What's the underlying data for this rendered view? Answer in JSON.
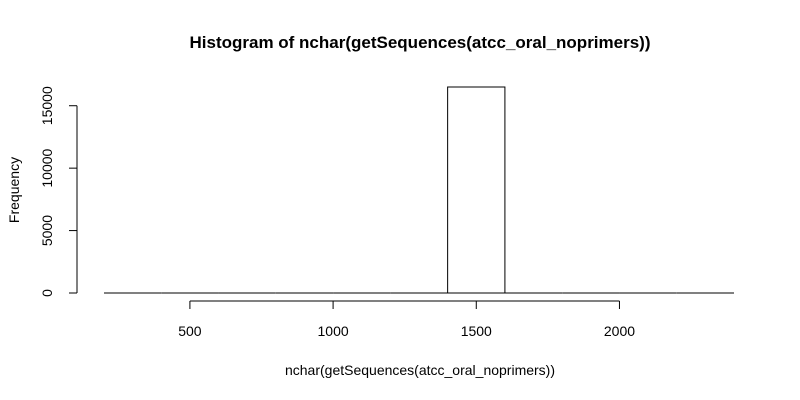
{
  "chart_data": {
    "type": "bar",
    "title": "Histogram of nchar(getSequences(atcc_oral_noprimers))",
    "xlabel": "nchar(getSequences(atcc_oral_noprimers))",
    "ylabel": "Frequency",
    "xlim": [
      200,
      2400
    ],
    "ylim": [
      0,
      16500
    ],
    "x_ticks": [
      500,
      1000,
      1500,
      2000
    ],
    "y_ticks": [
      0,
      5000,
      10000,
      15000
    ],
    "bins": [
      {
        "x0": 200,
        "x1": 400,
        "value": 0
      },
      {
        "x0": 400,
        "x1": 600,
        "value": 0
      },
      {
        "x0": 600,
        "x1": 800,
        "value": 0
      },
      {
        "x0": 800,
        "x1": 1000,
        "value": 0
      },
      {
        "x0": 1000,
        "x1": 1200,
        "value": 0
      },
      {
        "x0": 1200,
        "x1": 1400,
        "value": 0
      },
      {
        "x0": 1400,
        "x1": 1600,
        "value": 16500
      },
      {
        "x0": 1600,
        "x1": 1800,
        "value": 0
      },
      {
        "x0": 1800,
        "x1": 2000,
        "value": 0
      },
      {
        "x0": 2000,
        "x1": 2200,
        "value": 0
      },
      {
        "x0": 2200,
        "x1": 2400,
        "value": 0
      }
    ]
  }
}
